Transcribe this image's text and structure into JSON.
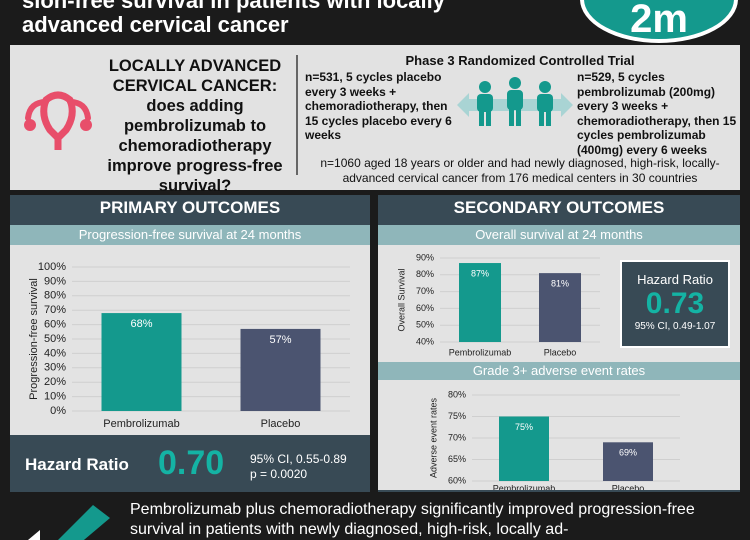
{
  "header": {
    "title_line1": "sion-free survival in patients with locally",
    "title_line2": "advanced cervical cancer",
    "logo": "2m"
  },
  "question": {
    "heading": "LOCALLY ADVANCED CERVICAL CANCER:",
    "text": "does adding pembrolizumab to chemoradiotherapy improve progress-free survival?"
  },
  "trial": {
    "title": "Phase 3 Randomized Controlled Trial",
    "placebo_arm": "n=531, 5 cycles placebo every 3 weeks + chemoradiotherapy, then 15 cycles placebo every 6 weeks",
    "pembrolizumab_arm": "n=529, 5 cycles pembrolizumab (200mg) every 3 weeks + chemoradiotherapy, then 15 cycles pembrolizumab (400mg) every 6 weeks",
    "population": "n=1060 aged 18 years or older and had newly diagnosed, high-risk, locally-advanced cervical cancer from 176 medical centers in 30 countries"
  },
  "primary": {
    "heading": "PRIMARY OUTCOMES",
    "hazard_label": "Hazard Ratio",
    "hazard_value": "0.70",
    "ci": "95% CI, 0.55-0.89",
    "p": "p = 0.0020"
  },
  "secondary": {
    "heading": "SECONDARY OUTCOMES",
    "hazard_label": "Hazard Ratio",
    "hazard_value": "0.73",
    "ci": "95% CI, 0.49-1.07"
  },
  "conclusion": {
    "text": "Pembrolizumab plus chemoradiotherapy significantly improved progression-free survival in patients with newly diagnosed, high-risk, locally ad-"
  },
  "chart_data": [
    {
      "type": "bar",
      "title": "Progression-free survival at 24 months",
      "y_label": "Progression-free survival",
      "categories": [
        "Pembrolizumab",
        "Placebo"
      ],
      "values": [
        68,
        57
      ],
      "value_labels": [
        "68%",
        "57%"
      ],
      "colors": [
        "#14998d",
        "#4b5470"
      ],
      "ylim": [
        0,
        100
      ],
      "yticks": [
        {
          "value": 0,
          "label": "0%"
        },
        {
          "value": 10,
          "label": "10%"
        },
        {
          "value": 20,
          "label": "20%"
        },
        {
          "value": 30,
          "label": "30%"
        },
        {
          "value": 40,
          "label": "40%"
        },
        {
          "value": 50,
          "label": "50%"
        },
        {
          "value": 60,
          "label": "60%"
        },
        {
          "value": 70,
          "label": "70%"
        },
        {
          "value": 80,
          "label": "80%"
        },
        {
          "value": 90,
          "label": "90%"
        },
        {
          "value": 100,
          "label": "100%"
        }
      ]
    },
    {
      "type": "bar",
      "title": "Overall survival at 24 months",
      "y_label": "Overall Survival",
      "categories": [
        "Pembrolizumab",
        "Placebo"
      ],
      "values": [
        87,
        81
      ],
      "value_labels": [
        "87%",
        "81%"
      ],
      "colors": [
        "#14998d",
        "#4b5470"
      ],
      "ylim": [
        40,
        90
      ],
      "yticks": [
        {
          "value": 40,
          "label": "40%"
        },
        {
          "value": 50,
          "label": "50%"
        },
        {
          "value": 60,
          "label": "60%"
        },
        {
          "value": 70,
          "label": "70%"
        },
        {
          "value": 80,
          "label": "80%"
        },
        {
          "value": 90,
          "label": "90%"
        }
      ]
    },
    {
      "type": "bar",
      "title": "Grade 3+ adverse event rates",
      "y_label": "Adverse event rates",
      "categories": [
        "Pembrolizumab",
        "Placebo"
      ],
      "values": [
        75,
        69
      ],
      "value_labels": [
        "75%",
        "69%"
      ],
      "colors": [
        "#14998d",
        "#4b5470"
      ],
      "ylim": [
        60,
        80
      ],
      "yticks": [
        {
          "value": 60,
          "label": "60%"
        },
        {
          "value": 65,
          "label": "65%"
        },
        {
          "value": 70,
          "label": "70%"
        },
        {
          "value": 75,
          "label": "75%"
        },
        {
          "value": 80,
          "label": "80%"
        }
      ]
    }
  ]
}
